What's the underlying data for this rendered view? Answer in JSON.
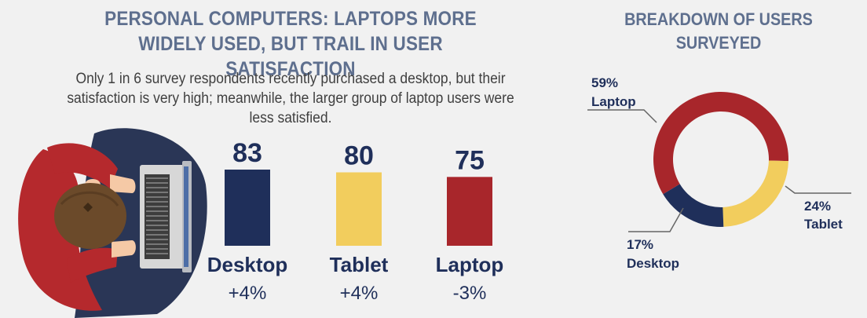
{
  "title": "PERSONAL COMPUTERS: LAPTOPS MORE WIDELY USED, BUT TRAIL IN USER SATISFACTION",
  "subtitle": "Only 1 in 6 survey respondents recently purchased a desktop, but their satisfaction is very high; meanwhile, the larger group of laptop users were less satisfied.",
  "right_title": "BREAKDOWN OF USERS SURVEYED",
  "colors": {
    "desktop": "#1f2f5a",
    "tablet": "#f2cd5d",
    "laptop": "#a8262b",
    "title": "#5e6f8e",
    "background": "#f1f1f1"
  },
  "chart_data": [
    {
      "type": "bar",
      "title": "PERSONAL COMPUTERS: LAPTOPS MORE WIDELY USED, BUT TRAIL IN USER SATISFACTION",
      "categories": [
        "Desktop",
        "Tablet",
        "Laptop"
      ],
      "values": [
        83,
        80,
        75
      ],
      "changes": [
        "+4%",
        "+4%",
        "-3%"
      ],
      "colors": [
        "#1f2f5a",
        "#f2cd5d",
        "#a8262b"
      ],
      "xlabel": "",
      "ylabel": "",
      "ylim": [
        70,
        84
      ]
    },
    {
      "type": "pie",
      "title": "BREAKDOWN OF USERS SURVEYED",
      "labels": [
        "Laptop",
        "Tablet",
        "Desktop"
      ],
      "values": [
        59,
        24,
        17
      ],
      "value_labels": [
        "59%",
        "24%",
        "17%"
      ],
      "colors": [
        "#a8262b",
        "#f2cd5d",
        "#1f2f5a"
      ],
      "donut": true
    }
  ]
}
